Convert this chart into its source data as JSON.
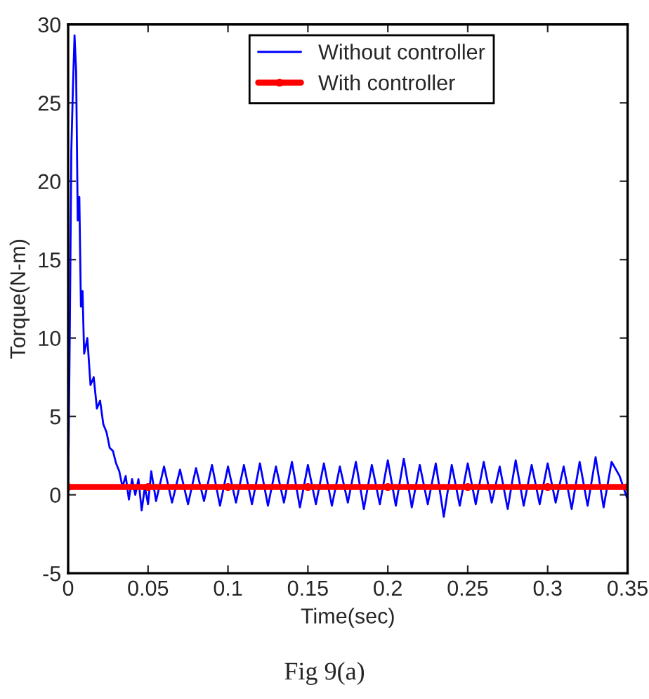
{
  "chart_data": {
    "type": "line",
    "xlabel": "Time(sec)",
    "ylabel": "Torque(N-m)",
    "annotations": [
      "Fig 9(a)"
    ],
    "xlim": [
      0,
      0.35
    ],
    "ylim": [
      -5,
      30
    ],
    "xticks": [
      0,
      0.05,
      0.1,
      0.15,
      0.2,
      0.25,
      0.3,
      0.35
    ],
    "yticks": [
      -5,
      0,
      5,
      10,
      15,
      20,
      25,
      30
    ],
    "grid": false,
    "legend": "top right",
    "series": [
      {
        "name": "Without controller",
        "color": "#0000ff",
        "marker": "none",
        "x": [
          0,
          0.001,
          0.002,
          0.003,
          0.004,
          0.005,
          0.006,
          0.007,
          0.008,
          0.009,
          0.01,
          0.012,
          0.014,
          0.016,
          0.018,
          0.02,
          0.022,
          0.024,
          0.026,
          0.028,
          0.03,
          0.032,
          0.034,
          0.036,
          0.038,
          0.04,
          0.042,
          0.044,
          0.046,
          0.048,
          0.05,
          0.052,
          0.055,
          0.06,
          0.065,
          0.07,
          0.075,
          0.08,
          0.085,
          0.09,
          0.095,
          0.1,
          0.105,
          0.11,
          0.115,
          0.12,
          0.125,
          0.13,
          0.135,
          0.14,
          0.145,
          0.15,
          0.155,
          0.16,
          0.165,
          0.17,
          0.175,
          0.18,
          0.185,
          0.19,
          0.195,
          0.2,
          0.205,
          0.21,
          0.215,
          0.22,
          0.225,
          0.23,
          0.235,
          0.24,
          0.245,
          0.25,
          0.255,
          0.26,
          0.265,
          0.27,
          0.275,
          0.28,
          0.285,
          0.29,
          0.295,
          0.3,
          0.305,
          0.31,
          0.315,
          0.32,
          0.325,
          0.33,
          0.335,
          0.34,
          0.345,
          0.35
        ],
        "values": [
          0,
          10,
          22,
          26,
          29.3,
          27,
          17.5,
          19,
          12,
          13,
          9,
          10,
          7,
          7.5,
          5.5,
          6,
          4.5,
          4,
          3,
          2.8,
          2,
          1.5,
          0.5,
          1.2,
          -0.3,
          1,
          0,
          1,
          -1,
          0.5,
          -0.6,
          1.5,
          -0.4,
          1.8,
          -0.5,
          1.6,
          -0.6,
          1.7,
          -0.4,
          1.9,
          -0.7,
          1.8,
          -0.5,
          1.9,
          -0.6,
          2,
          -0.7,
          1.8,
          -0.5,
          2.1,
          -0.8,
          1.9,
          -0.6,
          2,
          -0.7,
          1.8,
          -0.5,
          2.1,
          -0.9,
          1.9,
          -0.6,
          2.2,
          -0.7,
          2.3,
          -0.8,
          1.9,
          -0.6,
          2,
          -1.4,
          1.9,
          -0.7,
          2,
          -0.6,
          2.1,
          -0.5,
          1.8,
          -0.9,
          2.2,
          -0.7,
          1.9,
          -0.6,
          2,
          -0.5,
          1.8,
          -0.9,
          2.1,
          -0.7,
          2.4,
          -0.8,
          2.1,
          1.2,
          -0.3
        ]
      },
      {
        "name": "With controller",
        "color": "#ff0000",
        "marker": "circle",
        "x": [
          0,
          0.05,
          0.1,
          0.15,
          0.2,
          0.25,
          0.3,
          0.35
        ],
        "values": [
          0.5,
          0.5,
          0.5,
          0.5,
          0.5,
          0.5,
          0.5,
          0.5
        ]
      }
    ]
  }
}
